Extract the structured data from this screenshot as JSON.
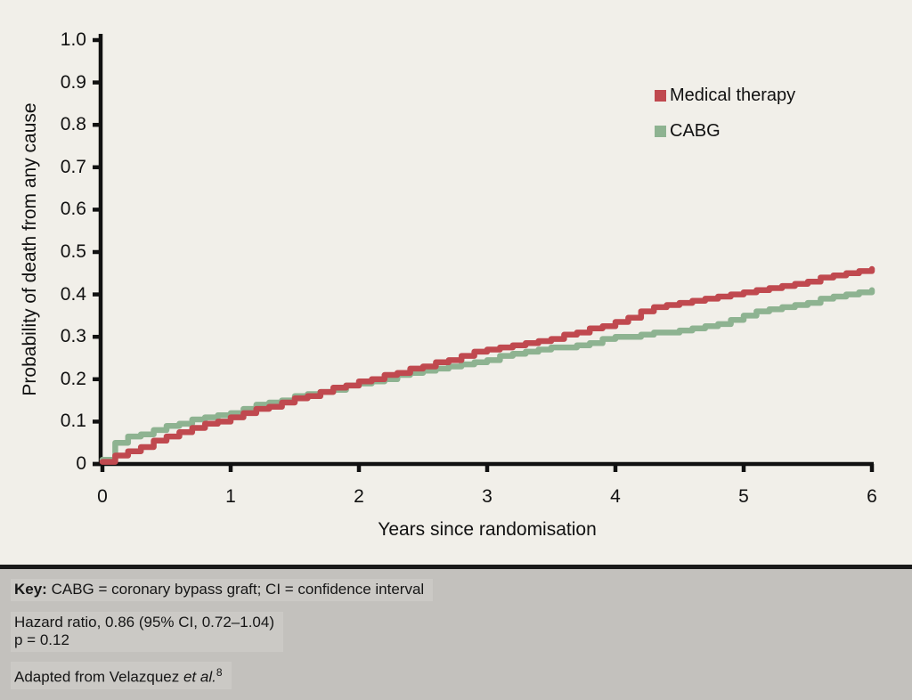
{
  "page": {
    "background": "#f1efe9",
    "footer_background": "#c3c1bd",
    "separator_color": "#191919"
  },
  "chart_data": {
    "type": "line",
    "subtype": "kaplan-meier-step",
    "title": "",
    "xlabel": "Years since randomisation",
    "ylabel": "Probability of death from any cause",
    "xlim": [
      0,
      6
    ],
    "ylim": [
      0,
      1.0
    ],
    "grid": false,
    "legend_position": "upper-right-inside",
    "x_ticks": [
      0,
      1,
      2,
      3,
      4,
      5,
      6
    ],
    "y_ticks": [
      0,
      0.1,
      0.2,
      0.3,
      0.4,
      0.5,
      0.6,
      0.7,
      0.8,
      0.9,
      1.0
    ],
    "y_tick_labels": [
      "0",
      "0.1",
      "0.2",
      "0.3",
      "0.4",
      "0.5",
      "0.6",
      "0.7",
      "0.8",
      "0.9",
      "1.0"
    ],
    "x": [
      0,
      0.1,
      0.2,
      0.3,
      0.4,
      0.5,
      0.6,
      0.7,
      0.8,
      0.9,
      1.0,
      1.1,
      1.2,
      1.3,
      1.4,
      1.5,
      1.6,
      1.7,
      1.8,
      1.9,
      2.0,
      2.1,
      2.2,
      2.3,
      2.4,
      2.5,
      2.6,
      2.7,
      2.8,
      2.9,
      3.0,
      3.1,
      3.2,
      3.3,
      3.4,
      3.5,
      3.6,
      3.7,
      3.8,
      3.9,
      4.0,
      4.1,
      4.2,
      4.3,
      4.4,
      4.5,
      4.6,
      4.7,
      4.8,
      4.9,
      5.0,
      5.1,
      5.2,
      5.3,
      5.4,
      5.5,
      5.6,
      5.7,
      5.8,
      5.9,
      6.0
    ],
    "series": [
      {
        "name": "Medical therapy",
        "color": "#c0494f",
        "values": [
          0.005,
          0.02,
          0.03,
          0.04,
          0.055,
          0.065,
          0.075,
          0.085,
          0.095,
          0.1,
          0.11,
          0.12,
          0.13,
          0.135,
          0.145,
          0.155,
          0.16,
          0.17,
          0.18,
          0.185,
          0.195,
          0.2,
          0.21,
          0.215,
          0.225,
          0.23,
          0.24,
          0.245,
          0.255,
          0.265,
          0.27,
          0.275,
          0.28,
          0.285,
          0.29,
          0.295,
          0.305,
          0.31,
          0.32,
          0.325,
          0.335,
          0.345,
          0.36,
          0.37,
          0.375,
          0.38,
          0.385,
          0.39,
          0.395,
          0.4,
          0.405,
          0.41,
          0.415,
          0.42,
          0.425,
          0.43,
          0.44,
          0.445,
          0.45,
          0.455,
          0.46
        ]
      },
      {
        "name": "CABG",
        "color": "#8eb391",
        "values": [
          0.01,
          0.05,
          0.065,
          0.07,
          0.08,
          0.09,
          0.095,
          0.105,
          0.11,
          0.115,
          0.12,
          0.13,
          0.14,
          0.145,
          0.15,
          0.16,
          0.165,
          0.17,
          0.175,
          0.185,
          0.19,
          0.195,
          0.2,
          0.21,
          0.215,
          0.22,
          0.225,
          0.23,
          0.235,
          0.24,
          0.245,
          0.255,
          0.26,
          0.265,
          0.27,
          0.275,
          0.275,
          0.28,
          0.285,
          0.295,
          0.3,
          0.3,
          0.305,
          0.31,
          0.31,
          0.315,
          0.32,
          0.325,
          0.33,
          0.34,
          0.35,
          0.36,
          0.365,
          0.37,
          0.375,
          0.38,
          0.39,
          0.395,
          0.4,
          0.405,
          0.41
        ]
      }
    ],
    "annotations": {
      "hazard_ratio": "Hazard ratio, 0.86 (95% CI, 0.72–1.04)",
      "p_value": "p = 0.12"
    }
  },
  "footer": {
    "key_bold": "Key:",
    "key_rest": " CABG = coronary bypass graft; CI = confidence interval",
    "hazard": "Hazard ratio, 0.86 (95% CI, 0.72–1.04)",
    "p_value": "p = 0.12",
    "adapted_prefix": "Adapted from Velazquez ",
    "adapted_italic": "et al.",
    "adapted_superscript": "8"
  }
}
